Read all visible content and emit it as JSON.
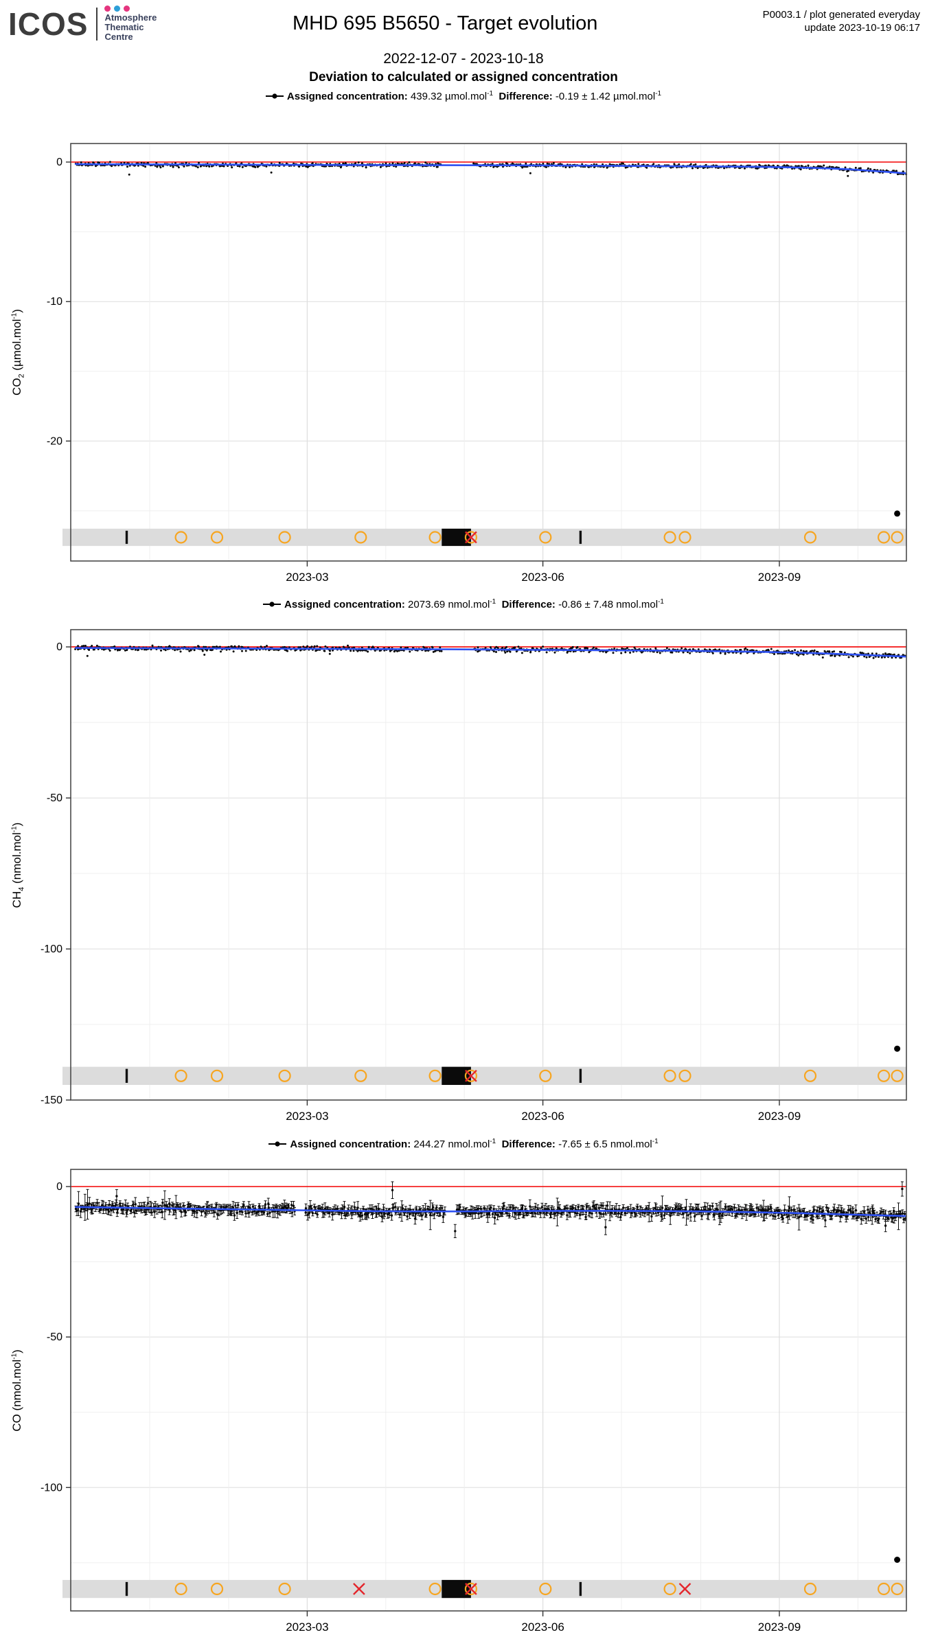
{
  "header": {
    "logo_text": "ICOS",
    "logo_unit_lines": [
      "Atmosphere",
      "Thematic",
      "Centre"
    ],
    "logo_dot_colors": [
      "#e5357f",
      "#2d9fd8",
      "#e5357f"
    ],
    "title": "MHD 695 B5650 - Target evolution",
    "meta_line1": "P0003.1 / plot generated everyday",
    "meta_line2": "update  2023-10-19 06:17",
    "subtitle": "2022-12-07 - 2023-10-18",
    "heading": "Deviation to calculated or assigned concentration"
  },
  "colors": {
    "reference_line": "#f40000",
    "trend_line": "#2e51f2",
    "scatter": "#0a0a0a",
    "qc_band": "#dcdcdc",
    "qc_circle": "#f7a520",
    "qc_cross": "#e4262c",
    "qc_box": "#0b0b0b",
    "grid_major": "#dedede",
    "grid_minor": "#efefef",
    "panel_border": "#4a4a4a"
  },
  "chart_data": [
    {
      "type": "scatter",
      "panel": "CO2 deviation",
      "axis": {
        "gas": "CO",
        "gas_sub": "2",
        "unit_open": " (µmol.mol",
        "unit_sup": "-1",
        "unit_close": ")"
      },
      "legend": {
        "assigned_label": "Assigned concentration:",
        "assigned_value": "439.32",
        "assigned_unit": "µmol.mol",
        "assigned_unit_sup": "-1",
        "diff_label": "Difference:",
        "diff_value": "-0.19 ± 1.42",
        "diff_unit": "µmol.mol",
        "diff_unit_sup": "-1"
      },
      "ylim": [
        -28.6,
        1.33
      ],
      "yticks_major": [
        0,
        -10,
        -20
      ],
      "yticks_minor": [
        -5,
        -15,
        -25
      ],
      "xticks": [
        {
          "label": "2023-03",
          "f": 0.283
        },
        {
          "label": "2023-06",
          "f": 0.565
        },
        {
          "label": "2023-09",
          "f": 0.848
        }
      ],
      "xminor": [
        0.0945,
        0.189,
        0.377,
        0.471,
        0.659,
        0.754,
        0.942
      ],
      "reference_line_y": 0,
      "trend_line": [
        [
          0.006,
          -0.15
        ],
        [
          0.2,
          -0.22
        ],
        [
          0.45,
          -0.2
        ],
        [
          0.7,
          -0.28
        ],
        [
          0.9,
          -0.38
        ],
        [
          0.999,
          -0.8
        ]
      ],
      "scatter_summary": {
        "n": 900,
        "mean": -0.19,
        "sd": 1.42,
        "noise": 0.14,
        "start": 0.006,
        "end": 0.999,
        "gaps": [
          [
            0.444,
            0.481
          ]
        ],
        "seed": 11,
        "error_bars": false
      },
      "spikes": [
        {
          "x": 0.07,
          "y": -0.9
        },
        {
          "x": 0.24,
          "y": -0.75
        },
        {
          "x": 0.55,
          "y": -0.8
        },
        {
          "x": 0.93,
          "y": -1.0
        }
      ],
      "outlier_point": {
        "x": 0.989,
        "y": -25.2
      },
      "qc_band": {
        "center": -26.9,
        "half": 0.62,
        "ticks": [
          0.067,
          0.61
        ],
        "circles": [
          0.132,
          0.175,
          0.256,
          0.347,
          0.436,
          0.479,
          0.568,
          0.717,
          0.735,
          0.885,
          0.973,
          0.989
        ],
        "box": [
          0.444,
          0.479
        ],
        "crosses": [
          0.479
        ]
      }
    },
    {
      "type": "scatter",
      "panel": "CH4 deviation",
      "axis": {
        "gas": "CH",
        "gas_sub": "4",
        "unit_open": " (nmol.mol",
        "unit_sup": "-1",
        "unit_close": ")"
      },
      "legend": {
        "assigned_label": "Assigned concentration:",
        "assigned_value": "2073.69",
        "assigned_unit": "nmol.mol",
        "assigned_unit_sup": "-1",
        "diff_label": "Difference:",
        "diff_value": "-0.86 ± 7.48",
        "diff_unit": "nmol.mol",
        "diff_unit_sup": "-1"
      },
      "ylim": [
        -150,
        5.7
      ],
      "yticks_major": [
        0,
        -50,
        -100,
        -150
      ],
      "yticks_minor": [
        -25,
        -75,
        -125
      ],
      "xticks": [
        {
          "label": "2023-03",
          "f": 0.283
        },
        {
          "label": "2023-06",
          "f": 0.565
        },
        {
          "label": "2023-09",
          "f": 0.848
        }
      ],
      "xminor": [
        0.0945,
        0.189,
        0.377,
        0.471,
        0.659,
        0.754,
        0.942
      ],
      "reference_line_y": 0,
      "trend_line": [
        [
          0.006,
          -0.35
        ],
        [
          0.3,
          -0.7
        ],
        [
          0.6,
          -0.9
        ],
        [
          0.85,
          -1.6
        ],
        [
          0.999,
          -3.2
        ]
      ],
      "scatter_summary": {
        "n": 900,
        "mean": -0.86,
        "sd": 7.48,
        "noise": 0.8,
        "start": 0.006,
        "end": 0.999,
        "gaps": [
          [
            0.444,
            0.481
          ]
        ],
        "seed": 23,
        "error_bars": false
      },
      "spikes": [
        {
          "x": 0.02,
          "y": -3.0
        },
        {
          "x": 0.16,
          "y": -2.6
        },
        {
          "x": 0.31,
          "y": -2.3
        },
        {
          "x": 0.52,
          "y": -1.9
        },
        {
          "x": 0.9,
          "y": -3.5
        }
      ],
      "outlier_point": {
        "x": 0.989,
        "y": -133
      },
      "qc_band": {
        "center": -142,
        "half": 3.0,
        "ticks": [
          0.067,
          0.61
        ],
        "circles": [
          0.132,
          0.175,
          0.256,
          0.347,
          0.436,
          0.479,
          0.568,
          0.717,
          0.735,
          0.885,
          0.973,
          0.989
        ],
        "box": [
          0.444,
          0.479
        ],
        "crosses": [
          0.479
        ]
      }
    },
    {
      "type": "scatter",
      "panel": "CO deviation",
      "axis": {
        "gas": "CO",
        "gas_sub": "",
        "unit_open": " (nmol.mol",
        "unit_sup": "-1",
        "unit_close": ")"
      },
      "legend": {
        "assigned_label": "Assigned concentration:",
        "assigned_value": "244.27",
        "assigned_unit": "nmol.mol",
        "assigned_unit_sup": "-1",
        "diff_label": "Difference:",
        "diff_value": "-7.65 ± 6.5",
        "diff_unit": "nmol.mol",
        "diff_unit_sup": "-1"
      },
      "ylim": [
        -141,
        5.7
      ],
      "yticks_major": [
        0,
        -50,
        -100
      ],
      "yticks_minor": [
        -25,
        -75,
        -125
      ],
      "xticks": [
        {
          "label": "2023-03",
          "f": 0.283
        },
        {
          "label": "2023-06",
          "f": 0.565
        },
        {
          "label": "2023-09",
          "f": 0.848
        }
      ],
      "xminor": [
        0.0945,
        0.189,
        0.377,
        0.471,
        0.659,
        0.754,
        0.942
      ],
      "reference_line_y": 0,
      "trend_line": [
        [
          0.006,
          -6.8
        ],
        [
          0.2,
          -7.6
        ],
        [
          0.4,
          -8.4
        ],
        [
          0.6,
          -8.0
        ],
        [
          0.8,
          -8.3
        ],
        [
          0.999,
          -9.8
        ]
      ],
      "scatter_summary": {
        "n": 760,
        "mean": -7.65,
        "sd": 6.5,
        "noise": 1.6,
        "start": 0.006,
        "end": 0.999,
        "gaps": [
          [
            0.268,
            0.281
          ],
          [
            0.448,
            0.462
          ]
        ],
        "seed": 47,
        "error_bars": true
      },
      "spikes": [
        {
          "x": 0.055,
          "y": -3.2,
          "e": 2.2
        },
        {
          "x": 0.385,
          "y": -1.2,
          "e": 2.8
        },
        {
          "x": 0.46,
          "y": -14.8,
          "e": 2.2
        },
        {
          "x": 0.64,
          "y": -13.5,
          "e": 2.5
        },
        {
          "x": 0.975,
          "y": -13.0,
          "e": 2.0
        },
        {
          "x": 0.995,
          "y": -0.8,
          "e": 2.4
        }
      ],
      "outlier_point": {
        "x": 0.989,
        "y": -124
      },
      "qc_band": {
        "center": -133.7,
        "half": 3.0,
        "ticks": [
          0.067,
          0.61
        ],
        "circles": [
          0.132,
          0.175,
          0.256,
          0.436,
          0.479,
          0.568,
          0.717,
          0.885,
          0.973,
          0.989
        ],
        "box": [
          0.444,
          0.479
        ],
        "crosses": [
          0.345,
          0.479,
          0.735
        ]
      }
    }
  ]
}
